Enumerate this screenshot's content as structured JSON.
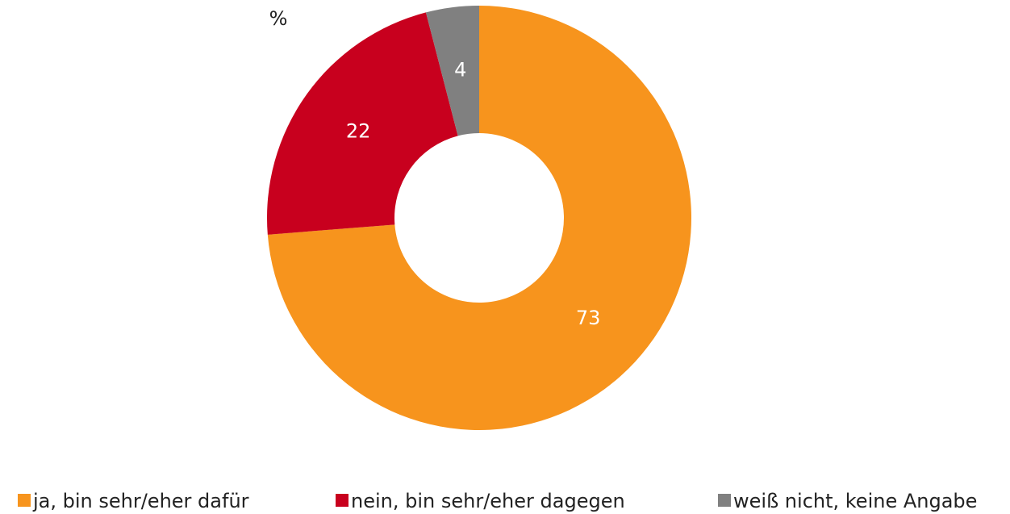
{
  "chart_data": {
    "type": "donut",
    "unit": "%",
    "categories": [
      "ja, bin sehr/eher dafür",
      "nein, bin sehr/eher dagegen",
      "weiß nicht, keine Angabe"
    ],
    "values": [
      73,
      22,
      4
    ],
    "colors": [
      "#f7941d",
      "#c8001e",
      "#808080"
    ]
  }
}
